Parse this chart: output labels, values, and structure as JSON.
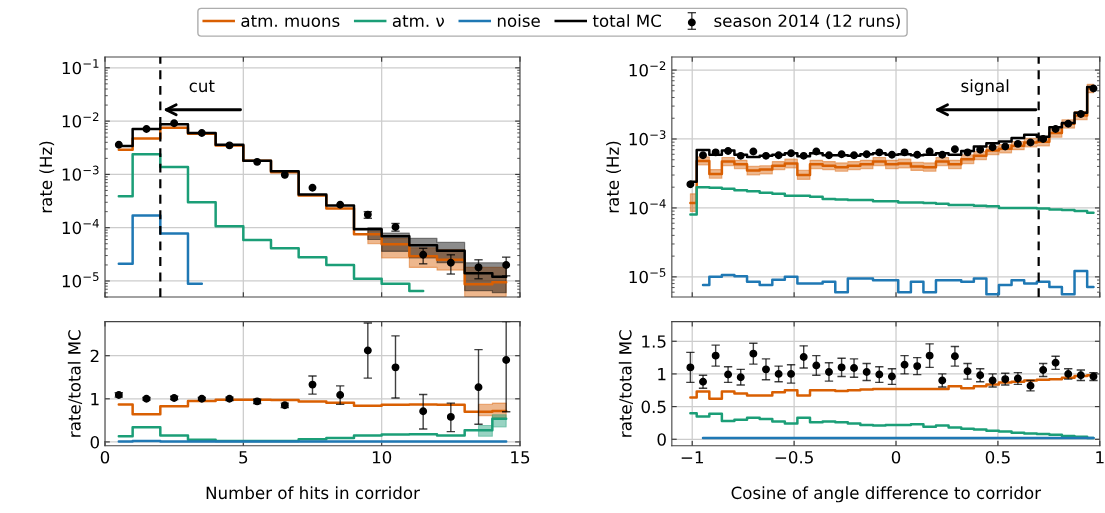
{
  "chart_data": [
    {
      "type": "step",
      "xlim": [
        0,
        15
      ],
      "ylim": [
        5e-06,
        0.16
      ],
      "log": "y",
      "grid": true,
      "tick_labels": "y",
      "legend": "top",
      "ylabel": "rate (Hz)",
      "xticks": [
        {
          "value": 0,
          "label": null
        },
        {
          "value": 5,
          "label": null
        },
        {
          "value": 10,
          "label": null
        },
        {
          "value": 15,
          "label": null
        }
      ],
      "yticks": [
        {
          "value": 1e-05,
          "label": "10$^{−5}$"
        },
        {
          "value": 0.0001,
          "label": "10$^{−4}$"
        },
        {
          "value": 0.001,
          "label": "10$^{−3}$"
        },
        {
          "value": 0.01,
          "label": "10$^{−2}$"
        },
        {
          "value": 0.1,
          "label": "10$^{−1}$"
        }
      ],
      "x": [
        0.5,
        1.5,
        2.5,
        3.5,
        4.5,
        5.5,
        6.5,
        7.5,
        8.5,
        9.5,
        10.5,
        11.5,
        12.5,
        13.5,
        14.5
      ],
      "ref_lines": [
        {
          "axis": "x",
          "value": 2,
          "label": "cut",
          "color": "#000000",
          "line_style": "dashed"
        }
      ],
      "series": [
        {
          "name": "atm. muons",
          "color": "#d95f02",
          "values": [
            0.0029,
            0.0047,
            0.0075,
            0.0058,
            0.0035,
            0.0018,
            0.0011,
            0.0004,
            0.00023,
            7.5e-05,
            4.9e-05,
            2.9e-05,
            2.5e-05,
            8.7e-06,
            9.5e-06
          ],
          "lower": [
            null,
            null,
            null,
            null,
            null,
            null,
            null,
            null,
            null,
            5e-05,
            2.7e-05,
            1.8e-05,
            1.6e-05,
            5.1e-06,
            5.1e-06
          ],
          "upper": [
            null,
            null,
            null,
            null,
            null,
            null,
            null,
            null,
            null,
            8.6e-05,
            6.3e-05,
            4.2e-05,
            3.9e-05,
            1.8e-05,
            1.8e-05
          ]
        },
        {
          "name": "atm. ν",
          "color": "#1b9e77",
          "values": [
            0.00039,
            0.0024,
            0.00137,
            0.0003,
            0.000107,
            5.9e-05,
            4.1e-05,
            2.8e-05,
            2e-05,
            1.1e-05,
            8.9e-06,
            6.5e-06,
            null,
            null,
            null
          ]
        },
        {
          "name": "noise",
          "color": "#1f78b4",
          "values": [
            2.1e-05,
            0.00017,
            7.8e-05,
            8.9e-06,
            null,
            null,
            null,
            null,
            null,
            null,
            null,
            null,
            null,
            null,
            null
          ]
        },
        {
          "name": "total MC",
          "color": "#000000",
          "values": [
            0.0034,
            0.0071,
            0.0087,
            0.006,
            0.0036,
            0.0018,
            0.00115,
            0.00042,
            0.00026,
            9.3e-05,
            6.9e-05,
            4.7e-05,
            3.7e-05,
            1.4e-05,
            1.2e-05
          ],
          "lower": [
            null,
            null,
            null,
            null,
            null,
            null,
            null,
            null,
            null,
            6e-05,
            3.6e-05,
            2.7e-05,
            2.2e-05,
            6.6e-06,
            6e-06
          ],
          "upper": [
            null,
            null,
            null,
            null,
            null,
            null,
            null,
            null,
            null,
            0.0001,
            7.9e-05,
            6.3e-05,
            5.3e-05,
            2.2e-05,
            2.2e-05
          ]
        },
        {
          "name": "season 2014 (12 runs)",
          "type": "scatter",
          "marker": "circle",
          "color": "#000000",
          "x": [
            0.5,
            1.5,
            2.5,
            3.5,
            4.5,
            5.5,
            6.5,
            7.5,
            8.5,
            9.5,
            10.5,
            11.5,
            12.5,
            13.5,
            14.5
          ],
          "values": [
            0.0036,
            0.0071,
            0.0091,
            0.006,
            0.0035,
            0.00172,
            0.00098,
            0.00056,
            0.00027,
            0.000176,
            0.000103,
            3.1e-05,
            2.2e-05,
            1.8e-05,
            2e-05
          ],
          "errors": [
            null,
            null,
            null,
            null,
            null,
            null,
            null,
            null,
            null,
            [
              0.00015,
              0.0002
            ],
            [
              8.6e-05,
              0.00012
            ],
            [
              2.1e-05,
              4.1e-05
            ],
            [
              1.35e-05,
              3.1e-05
            ],
            [
              1.1e-05,
              2.5e-05
            ],
            [
              1.25e-05,
              2.8e-05
            ]
          ]
        }
      ]
    },
    {
      "type": "step",
      "xlim": [
        -1.1,
        1.0
      ],
      "ylim": [
        5.1e-06,
        0.0155
      ],
      "log": "y",
      "grid": true,
      "tick_labels": "y",
      "ylabel": "rate (Hz)",
      "xticks": [
        {
          "value": -1,
          "label": null
        },
        {
          "value": -0.5,
          "label": null
        },
        {
          "value": 0,
          "label": null
        },
        {
          "value": 0.5,
          "label": null
        },
        {
          "value": 1,
          "label": null
        }
      ],
      "yticks": [
        {
          "value": 1e-05,
          "label": "10$^{−5}$"
        },
        {
          "value": 0.0001,
          "label": "10$^{−4}$"
        },
        {
          "value": 0.001,
          "label": "10$^{−3}$"
        },
        {
          "value": 0.01,
          "label": "10$^{−2}$"
        }
      ],
      "x": [
        -1.009,
        -0.947,
        -0.885,
        -0.824,
        -0.762,
        -0.7,
        -0.638,
        -0.576,
        -0.515,
        -0.453,
        -0.391,
        -0.329,
        -0.267,
        -0.206,
        -0.144,
        -0.082,
        -0.02,
        0.042,
        0.104,
        0.165,
        0.227,
        0.289,
        0.351,
        0.413,
        0.474,
        0.536,
        0.598,
        0.66,
        0.722,
        0.783,
        0.845,
        0.907,
        0.969
      ],
      "ref_lines": [
        {
          "axis": "x",
          "value": 0.7,
          "label": "signal",
          "color": "#000000",
          "line_style": "dashed"
        }
      ],
      "series": [
        {
          "color": "#d95f02",
          "values": [
            0.000118,
            0.00048,
            0.00031,
            0.00047,
            0.00043,
            0.00035,
            0.00036,
            0.00041,
            0.00044,
            0.0003,
            0.00043,
            0.00041,
            0.00039,
            0.00041,
            0.00043,
            0.00047,
            0.00043,
            0.00044,
            0.0004,
            0.00039,
            0.00047,
            0.00043,
            0.00051,
            0.00057,
            0.00068,
            0.00072,
            0.0008,
            0.00089,
            0.00091,
            0.00122,
            0.00166,
            0.0022,
            0.0054
          ],
          "lower": [
            8.9e-05,
            0.00042,
            0.00027,
            0.00041,
            0.00037,
            0.0003,
            0.00031,
            0.00036,
            0.00038,
            0.00026,
            0.00037,
            0.00036,
            0.00034,
            0.00036,
            0.00037,
            0.00041,
            0.00037,
            0.00038,
            0.00035,
            0.00034,
            0.00041,
            0.00037,
            0.00044,
            0.0005,
            0.00059,
            0.00063,
            0.0007,
            0.00077,
            0.00079,
            0.00106,
            0.00144,
            0.0019,
            0.0047
          ],
          "upper": [
            0.00016,
            0.00055,
            0.00036,
            0.00054,
            0.00049,
            0.0004,
            0.00041,
            0.00047,
            0.00051,
            0.00035,
            0.00049,
            0.00047,
            0.00045,
            0.00047,
            0.00049,
            0.00054,
            0.00049,
            0.00051,
            0.00046,
            0.00045,
            0.00054,
            0.00049,
            0.00059,
            0.00066,
            0.00078,
            0.00083,
            0.00092,
            0.00102,
            0.00105,
            0.0014,
            0.0019,
            0.0025,
            0.0062
          ]
        },
        {
          "color": "#1b9e77",
          "values": [
            8e-05,
            0.0002,
            0.000197,
            0.00019,
            0.00018,
            0.000175,
            0.000166,
            0.00016,
            0.00015,
            0.00015,
            0.000145,
            0.000135,
            0.000132,
            0.00013,
            0.00013,
            0.000125,
            0.000125,
            0.00012,
            0.00012,
            0.000118,
            0.000115,
            0.00011,
            0.00011,
            0.000108,
            0.000106,
            0.0001,
            0.0001,
            0.0001,
            9.8e-05,
            9.5e-05,
            9.3e-05,
            9e-05,
            8.5e-05
          ]
        },
        {
          "color": "#1f78b4",
          "values": [
            null,
            7.6e-06,
            1e-05,
            1.06e-05,
            1.02e-05,
            8.5e-06,
            7.6e-06,
            9.1e-06,
            1e-05,
            8e-06,
            8e-06,
            8.5e-06,
            6e-06,
            9.5e-06,
            9.5e-06,
            8.9e-06,
            8.9e-06,
            6e-06,
            8.5e-06,
            6e-06,
            8.9e-06,
            8.9e-06,
            8.5e-06,
            9.5e-06,
            5.6e-06,
            7.6e-06,
            8.9e-06,
            8e-06,
            8.5e-06,
            7.1e-06,
            5.6e-06,
            1.22e-05,
            7.1e-06
          ]
        },
        {
          "color": "#000000",
          "values": [
            0.00024,
            0.00069,
            0.00059,
            0.00068,
            0.00059,
            0.00055,
            0.00057,
            0.00059,
            0.00062,
            0.00056,
            0.00062,
            0.00058,
            0.00058,
            0.00057,
            0.0006,
            0.00062,
            0.00059,
            0.0006,
            0.00058,
            0.00059,
            0.00062,
            0.00059,
            0.00067,
            0.00078,
            0.00087,
            0.00092,
            0.00103,
            0.00115,
            0.00108,
            0.00148,
            0.00171,
            0.0024,
            0.0057
          ]
        },
        {
          "type": "scatter",
          "marker": "circle",
          "color": "#000000",
          "x": [
            -1.009,
            -0.947,
            -0.885,
            -0.824,
            -0.762,
            -0.7,
            -0.638,
            -0.576,
            -0.515,
            -0.453,
            -0.391,
            -0.329,
            -0.267,
            -0.206,
            -0.144,
            -0.082,
            -0.02,
            0.042,
            0.104,
            0.165,
            0.227,
            0.289,
            0.351,
            0.413,
            0.474,
            0.536,
            0.598,
            0.66,
            0.722,
            0.783,
            0.845,
            0.907,
            0.969
          ],
          "values": [
            0.00022,
            0.00058,
            0.00064,
            0.00067,
            0.00057,
            0.00066,
            0.00057,
            0.00058,
            0.00062,
            0.00057,
            0.00066,
            0.00058,
            0.0006,
            0.00058,
            0.0006,
            0.00064,
            0.00059,
            0.00064,
            0.00059,
            0.00066,
            0.00059,
            0.00071,
            0.00064,
            0.0007,
            0.00076,
            0.00078,
            0.00085,
            0.00089,
            0.001,
            0.0014,
            0.00166,
            0.0023,
            0.0054
          ]
        }
      ]
    },
    {
      "type": "step",
      "xlim": [
        0,
        15
      ],
      "ylim": [
        -0.09,
        2.79
      ],
      "grid": true,
      "ylabel": "rate/total MC",
      "xlabel": "Number of hits in corridor",
      "xticks": [
        0,
        5,
        10,
        15
      ],
      "yticks": [
        0,
        1,
        2
      ],
      "x": [
        0.5,
        1.5,
        2.5,
        3.5,
        4.5,
        5.5,
        6.5,
        7.5,
        8.5,
        9.5,
        10.5,
        11.5,
        12.5,
        13.5,
        14.5
      ],
      "series": [
        {
          "color": "#d95f02",
          "values": [
            0.87,
            0.64,
            0.83,
            0.95,
            0.98,
            0.98,
            0.97,
            0.94,
            0.91,
            0.84,
            0.86,
            0.87,
            0.86,
            0.7,
            0.72
          ],
          "lower": [
            null,
            null,
            null,
            null,
            null,
            null,
            null,
            null,
            null,
            null,
            null,
            null,
            null,
            0.61,
            0.56
          ],
          "upper": [
            null,
            null,
            null,
            null,
            null,
            null,
            null,
            null,
            null,
            null,
            null,
            null,
            null,
            0.87,
            0.9
          ]
        },
        {
          "color": "#1b9e77",
          "values": [
            0.13,
            0.34,
            0.15,
            0.05,
            0.02,
            0.02,
            0.02,
            0.06,
            0.09,
            0.15,
            0.17,
            0.18,
            0.15,
            0.27,
            0.54
          ],
          "lower": [
            null,
            null,
            null,
            null,
            null,
            null,
            null,
            null,
            null,
            null,
            null,
            null,
            null,
            0.13,
            0.35
          ],
          "upper": [
            null,
            null,
            null,
            null,
            null,
            null,
            null,
            null,
            null,
            null,
            null,
            null,
            null,
            0.38,
            0.63
          ]
        },
        {
          "color": "#1f78b4",
          "values": [
            0.01,
            0.02,
            0.01,
            0.01,
            0.01,
            0.01,
            0.01,
            0.01,
            0.01,
            0.01,
            0.01,
            0.01,
            0.01,
            0.01,
            0.01
          ]
        },
        {
          "type": "scatter",
          "marker": "circle",
          "color": "#000000",
          "x": [
            0.5,
            1.5,
            2.5,
            3.5,
            4.5,
            5.5,
            6.5,
            7.5,
            8.5,
            9.5,
            10.5,
            11.5,
            12.5,
            13.5,
            14.5
          ],
          "values": [
            1.09,
            1.0,
            1.02,
            1.0,
            1.0,
            0.94,
            0.85,
            1.33,
            1.09,
            2.12,
            1.73,
            0.71,
            0.58,
            1.27,
            1.9
          ],
          "errors": [
            0.05,
            0.03,
            0.04,
            0.03,
            0.04,
            0.05,
            0.05,
            [
              1.11,
              1.53
            ],
            [
              0.87,
              1.3
            ],
            [
              1.48,
              2.76
            ],
            [
              1.02,
              2.46
            ],
            [
              0.3,
              1.1
            ],
            [
              0.24,
              0.9
            ],
            [
              0.41,
              2.14
            ],
            [
              0.7,
              2.79
            ]
          ]
        }
      ]
    },
    {
      "type": "step",
      "xlim": [
        -1.1,
        1.0
      ],
      "ylim": [
        -0.1,
        1.8
      ],
      "grid": true,
      "ylabel": "rate/total MC",
      "xlabel": "Cosine of angle difference to corridor",
      "xticks": [
        {
          "value": -1,
          "label": "−1"
        },
        {
          "value": -0.5,
          "label": "−0.5"
        },
        0,
        0.5,
        1
      ],
      "yticks": [
        0,
        0.5,
        1,
        1.5
      ],
      "x": [
        -1.009,
        -0.947,
        -0.885,
        -0.824,
        -0.762,
        -0.7,
        -0.638,
        -0.576,
        -0.515,
        -0.453,
        -0.391,
        -0.329,
        -0.267,
        -0.206,
        -0.144,
        -0.082,
        -0.02,
        0.042,
        0.104,
        0.165,
        0.227,
        0.289,
        0.351,
        0.413,
        0.474,
        0.536,
        0.598,
        0.66,
        0.722,
        0.783,
        0.845,
        0.907,
        0.969
      ],
      "series": [
        {
          "color": "#d95f02",
          "values": [
            0.64,
            0.73,
            0.62,
            0.73,
            0.7,
            0.67,
            0.67,
            0.72,
            0.75,
            0.67,
            0.75,
            0.75,
            0.74,
            0.75,
            0.76,
            0.77,
            0.77,
            0.77,
            0.77,
            0.77,
            0.77,
            0.81,
            0.78,
            0.81,
            0.84,
            0.87,
            0.88,
            0.9,
            0.91,
            0.92,
            0.94,
            0.97,
            0.98
          ]
        },
        {
          "color": "#1b9e77",
          "values": [
            0.4,
            0.35,
            0.39,
            0.28,
            0.3,
            0.33,
            0.31,
            0.27,
            0.24,
            0.33,
            0.26,
            0.27,
            0.26,
            0.24,
            0.22,
            0.21,
            0.22,
            0.22,
            0.23,
            0.19,
            0.21,
            0.18,
            0.16,
            0.15,
            0.13,
            0.12,
            0.1,
            0.09,
            0.08,
            0.07,
            0.05,
            0.04,
            0.02
          ]
        },
        {
          "color": "#1f78b4",
          "values": [
            null,
            0.02,
            0.02,
            0.02,
            0.02,
            0.02,
            0.02,
            0.02,
            0.02,
            0.02,
            0.02,
            0.02,
            0.02,
            0.02,
            0.02,
            0.02,
            0.02,
            0.02,
            0.02,
            0.02,
            0.02,
            0.02,
            0.02,
            0.02,
            0.02,
            0.02,
            0.02,
            0.02,
            0.02,
            0.02,
            0.02,
            0.02,
            0.02
          ]
        },
        {
          "type": "scatter",
          "marker": "circle",
          "color": "#000000",
          "x": [
            -1.009,
            -0.947,
            -0.885,
            -0.824,
            -0.762,
            -0.7,
            -0.638,
            -0.576,
            -0.515,
            -0.453,
            -0.391,
            -0.329,
            -0.267,
            -0.206,
            -0.144,
            -0.082,
            -0.02,
            0.042,
            0.104,
            0.165,
            0.227,
            0.289,
            0.351,
            0.413,
            0.474,
            0.536,
            0.598,
            0.66,
            0.722,
            0.783,
            0.845,
            0.907,
            0.969
          ],
          "values": [
            1.1,
            0.88,
            1.28,
            0.99,
            0.95,
            1.31,
            1.07,
            1.0,
            1.0,
            1.26,
            1.13,
            1.03,
            1.1,
            1.09,
            1.03,
            0.99,
            0.96,
            1.14,
            1.12,
            1.28,
            0.9,
            1.27,
            1.04,
            0.98,
            0.9,
            0.92,
            0.93,
            0.82,
            1.06,
            1.17,
            1.0,
            0.98,
            0.96
          ],
          "errors": [
            0.23,
            0.1,
            0.16,
            0.12,
            0.12,
            0.16,
            0.16,
            0.12,
            0.14,
            0.17,
            0.15,
            0.14,
            0.14,
            0.14,
            0.13,
            0.12,
            0.12,
            0.14,
            0.13,
            0.18,
            0.1,
            0.15,
            0.12,
            0.1,
            0.1,
            0.09,
            0.09,
            0.08,
            0.1,
            0.1,
            0.08,
            0.08,
            0.06
          ]
        }
      ]
    }
  ]
}
